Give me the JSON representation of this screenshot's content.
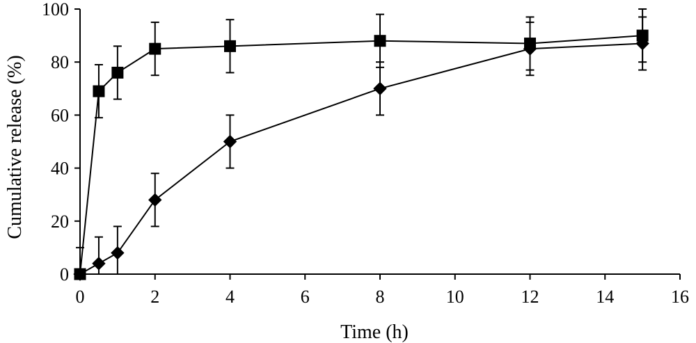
{
  "chart_data": {
    "type": "line",
    "xlabel": "Time (h)",
    "ylabel": "Cumulative release (%)",
    "xlim": [
      0,
      16
    ],
    "ylim": [
      0,
      100
    ],
    "x_ticks": [
      "0",
      "2",
      "4",
      "6",
      "8",
      "10",
      "12",
      "14",
      "16"
    ],
    "y_ticks": [
      "0",
      "20",
      "40",
      "60",
      "80",
      "100"
    ],
    "grid": false,
    "series": [
      {
        "marker": "square",
        "x": [
          0,
          0.5,
          1,
          2,
          4,
          8,
          12,
          15
        ],
        "y": [
          0,
          69,
          76,
          85,
          86,
          88,
          87,
          90
        ],
        "error": [
          0,
          10,
          10,
          10,
          10,
          10,
          10,
          10
        ]
      },
      {
        "marker": "diamond",
        "x": [
          0,
          0.5,
          1,
          2,
          4,
          8,
          12,
          15
        ],
        "y": [
          0,
          4,
          8,
          28,
          50,
          70,
          85,
          87
        ],
        "error": [
          10,
          10,
          10,
          10,
          10,
          10,
          10,
          10
        ]
      }
    ],
    "colors": {
      "line": "#000000",
      "marker": "#000000",
      "background": "#ffffff"
    }
  }
}
